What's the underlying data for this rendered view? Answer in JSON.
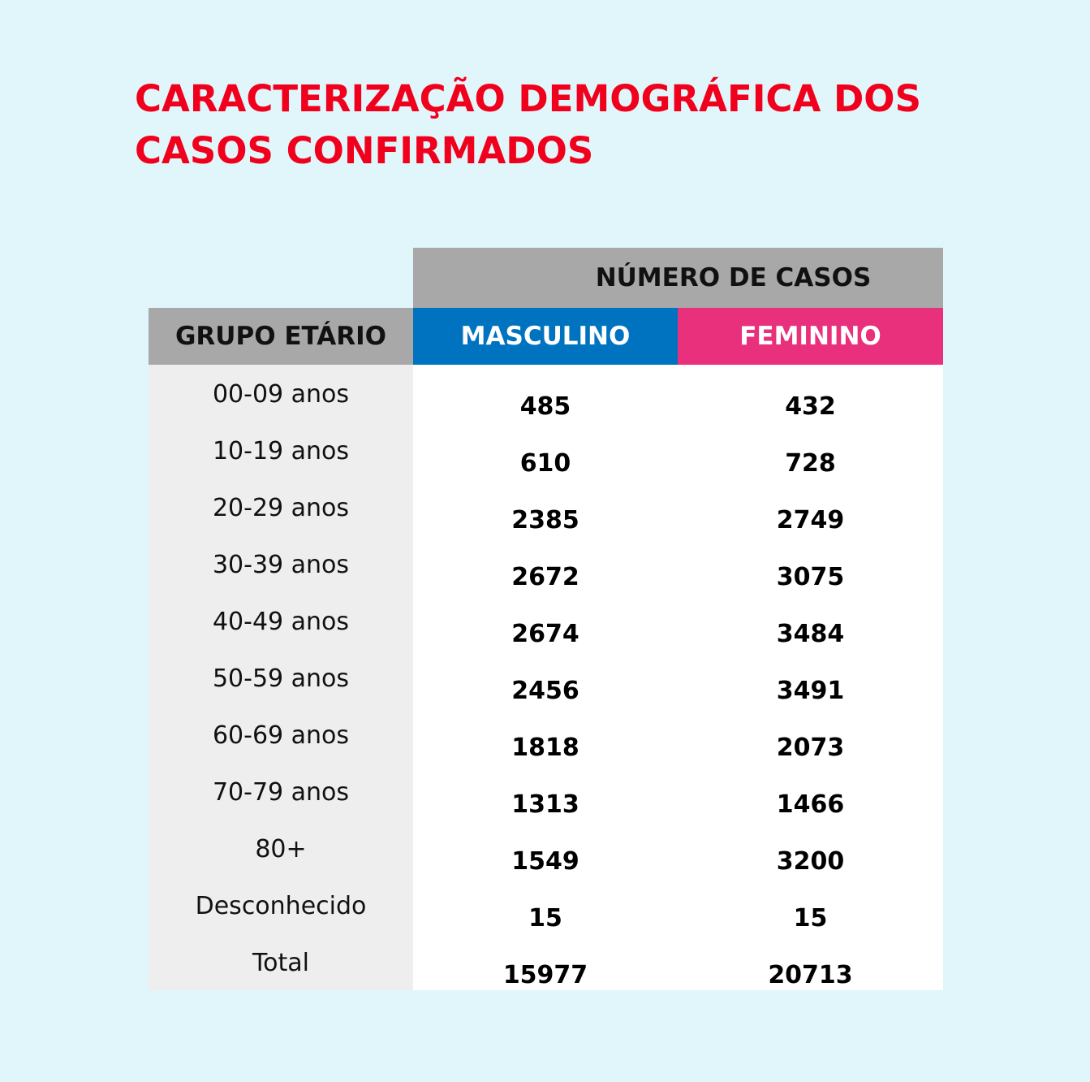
{
  "title": {
    "line1": "CARACTERIZAÇÃO DEMOGRÁFICA DOS",
    "line2": "CASOS CONFIRMADOS"
  },
  "table": {
    "group_header": "NÚMERO DE CASOS",
    "columns": {
      "age": "GRUPO ETÁRIO",
      "male": "MASCULINO",
      "female": "FEMININO"
    },
    "rows": [
      {
        "age": "00-09 anos",
        "male": "485",
        "female": "432"
      },
      {
        "age": "10-19 anos",
        "male": "610",
        "female": "728"
      },
      {
        "age": "20-29 anos",
        "male": "2385",
        "female": "2749"
      },
      {
        "age": "30-39 anos",
        "male": "2672",
        "female": "3075"
      },
      {
        "age": "40-49 anos",
        "male": "2674",
        "female": "3484"
      },
      {
        "age": "50-59 anos",
        "male": "2456",
        "female": "3491"
      },
      {
        "age": "60-69 anos",
        "male": "1818",
        "female": "2073"
      },
      {
        "age": "70-79 anos",
        "male": "1313",
        "female": "1466"
      },
      {
        "age": "80+",
        "male": "1549",
        "female": "3200"
      },
      {
        "age": "Desconhecido",
        "male": "15",
        "female": "15"
      },
      {
        "age": "Total",
        "male": "15977",
        "female": "20713"
      }
    ]
  },
  "colors": {
    "background": "#e1f6fb",
    "title": "#f0001c",
    "header_gray": "#a8a8a8",
    "male": "#0073c0",
    "female": "#e8307c"
  }
}
